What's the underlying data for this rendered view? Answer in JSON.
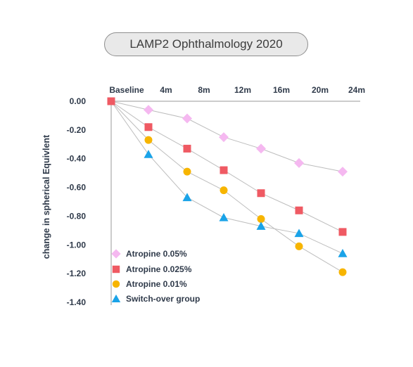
{
  "chart_data": {
    "type": "line",
    "title": "LAMP2 Ophthalmology 2020",
    "ylabel": "change in spherical Equivlent",
    "xlabel": "",
    "x_ticks": [
      "Baseline",
      "4m",
      "8m",
      "12m",
      "16m",
      "20m",
      "24m"
    ],
    "y_ticks": [
      "0.00",
      "-0.20",
      "-0.40",
      "-0.60",
      "-0.80",
      "-1.00",
      "-1.20",
      "-1.40"
    ],
    "ylim": [
      -1.4,
      0
    ],
    "x_points": [
      0,
      4,
      8,
      12,
      16,
      20,
      24
    ],
    "legend_position": "bottom-left",
    "series": [
      {
        "name": "Atropine 0.05%",
        "marker": "diamond",
        "color": "#f5b8f0",
        "values": [
          0,
          -0.06,
          -0.12,
          -0.25,
          -0.33,
          -0.43,
          -0.49
        ]
      },
      {
        "name": "Atropine 0.025%",
        "marker": "square",
        "color": "#ef5a63",
        "values": [
          0,
          -0.18,
          -0.33,
          -0.48,
          -0.64,
          -0.76,
          -0.91
        ]
      },
      {
        "name": "Atropine 0.01%",
        "marker": "circle",
        "color": "#f7b500",
        "values": [
          0,
          -0.27,
          -0.49,
          -0.62,
          -0.82,
          -1.01,
          -1.19
        ]
      },
      {
        "name": "Switch-over group",
        "marker": "triangle",
        "color": "#1aa3e8",
        "values": [
          0,
          -0.37,
          -0.67,
          -0.81,
          -0.87,
          -0.92,
          -1.06
        ]
      }
    ]
  }
}
